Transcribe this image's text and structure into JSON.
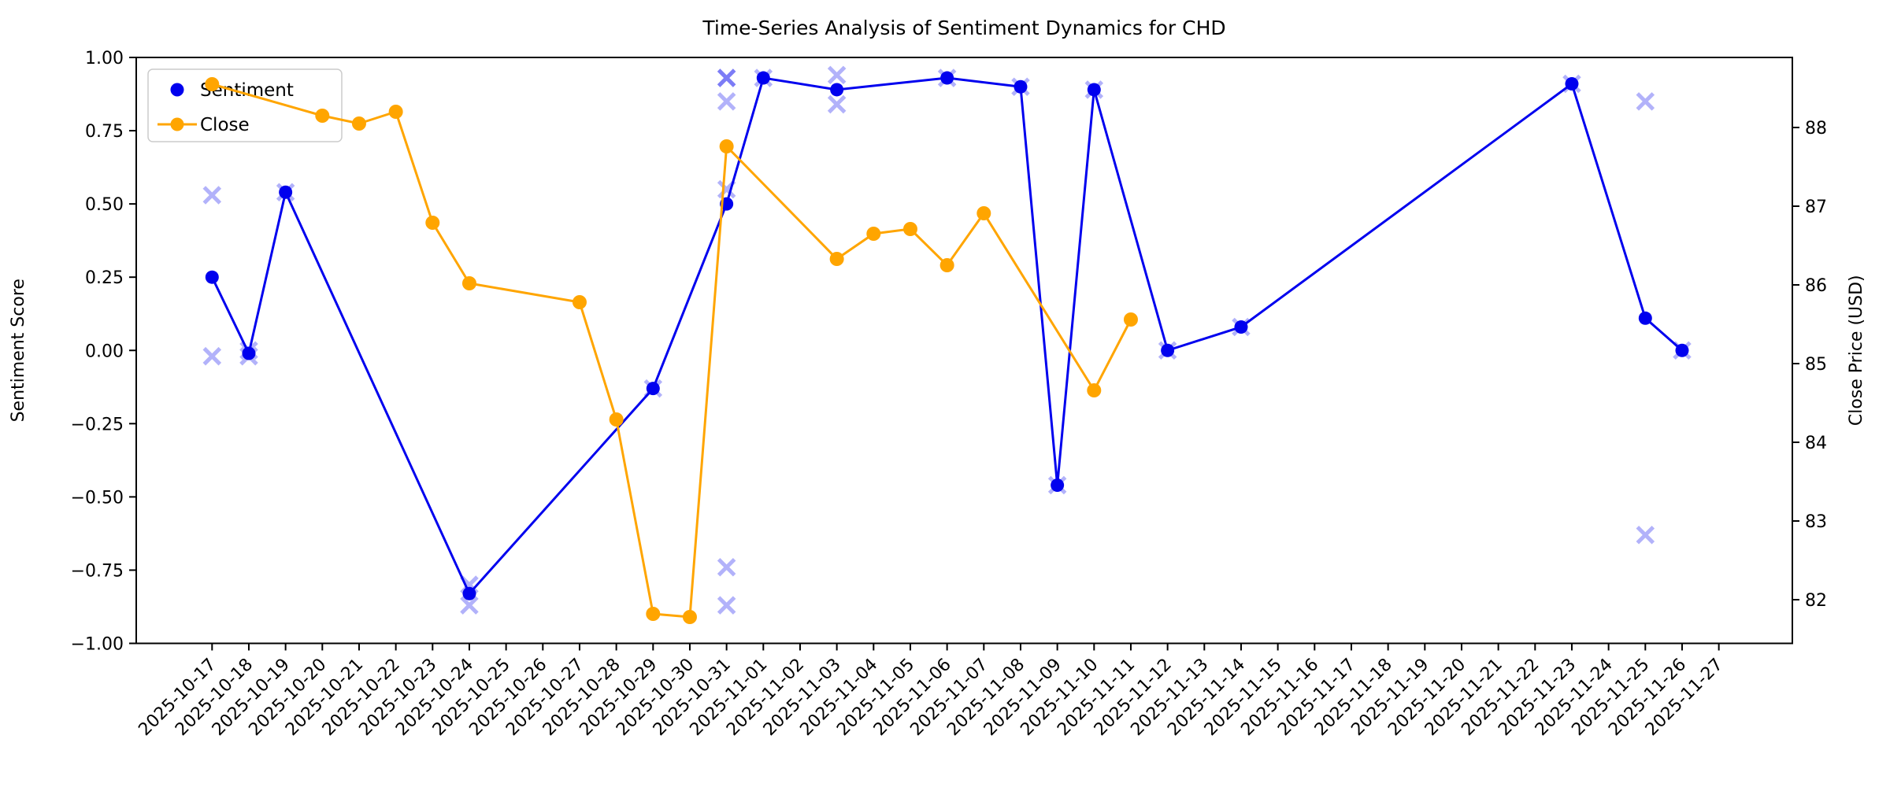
{
  "chart_data": {
    "type": "line",
    "title": "Time-Series Analysis of Sentiment Dynamics for CHD",
    "left_axis": {
      "label": "Sentiment Score",
      "lim": [
        -1.0,
        1.0
      ],
      "tick_values": [
        1.0,
        0.75,
        0.5,
        0.25,
        0.0,
        -0.25,
        -0.5,
        -0.75,
        -1.0
      ],
      "tick_labels": [
        "1.00",
        "0.75",
        "0.50",
        "0.25",
        "0.00",
        "−0.25",
        "−0.50",
        "−0.75",
        "−1.00"
      ]
    },
    "right_axis": {
      "label": "Close Price (USD)",
      "lim": [
        81.45,
        88.89
      ],
      "tick_values": [
        88,
        87,
        86,
        85,
        84,
        83,
        82
      ],
      "tick_labels": [
        "88",
        "87",
        "86",
        "85",
        "84",
        "83",
        "82"
      ]
    },
    "x_axis": {
      "rotation": 45,
      "dates": [
        "2025-10-17",
        "2025-10-18",
        "2025-10-19",
        "2025-10-20",
        "2025-10-21",
        "2025-10-22",
        "2025-10-23",
        "2025-10-24",
        "2025-10-25",
        "2025-10-26",
        "2025-10-27",
        "2025-10-28",
        "2025-10-29",
        "2025-10-30",
        "2025-10-31",
        "2025-11-01",
        "2025-11-02",
        "2025-11-03",
        "2025-11-04",
        "2025-11-05",
        "2025-11-06",
        "2025-11-07",
        "2025-11-08",
        "2025-11-09",
        "2025-11-10",
        "2025-11-11",
        "2025-11-12",
        "2025-11-13",
        "2025-11-14",
        "2025-11-15",
        "2025-11-16",
        "2025-11-17",
        "2025-11-18",
        "2025-11-19",
        "2025-11-20",
        "2025-11-21",
        "2025-11-22",
        "2025-11-23",
        "2025-11-24",
        "2025-11-25",
        "2025-11-26",
        "2025-11-27"
      ]
    },
    "legend": [
      {
        "label": "Sentiment",
        "color": "#0000EE",
        "marker": "dot"
      },
      {
        "label": "Close",
        "color": "#FFA500",
        "marker": "line-dot"
      }
    ],
    "series": {
      "sentiment_line": {
        "name": "Sentiment",
        "color": "#0000EE",
        "points": [
          [
            "2025-10-17",
            0.25
          ],
          [
            "2025-10-18",
            -0.01
          ],
          [
            "2025-10-19",
            0.54
          ],
          [
            "2025-10-24",
            -0.83
          ],
          [
            "2025-10-29",
            -0.13
          ],
          [
            "2025-10-31",
            0.5
          ],
          [
            "2025-11-01",
            0.93
          ],
          [
            "2025-11-03",
            0.89
          ],
          [
            "2025-11-06",
            0.93
          ],
          [
            "2025-11-08",
            0.9
          ],
          [
            "2025-11-09",
            -0.46
          ],
          [
            "2025-11-10",
            0.89
          ],
          [
            "2025-11-12",
            0.0
          ],
          [
            "2025-11-14",
            0.08
          ],
          [
            "2025-11-23",
            0.91
          ],
          [
            "2025-11-25",
            0.11
          ],
          [
            "2025-11-26",
            0.0
          ]
        ]
      },
      "close_line": {
        "name": "Close",
        "color": "#FFA500",
        "points": [
          [
            "2025-10-17",
            88.55
          ],
          [
            "2025-10-20",
            88.15
          ],
          [
            "2025-10-21",
            88.05
          ],
          [
            "2025-10-22",
            88.2
          ],
          [
            "2025-10-23",
            86.79
          ],
          [
            "2025-10-24",
            86.02
          ],
          [
            "2025-10-27",
            85.78
          ],
          [
            "2025-10-28",
            84.29
          ],
          [
            "2025-10-29",
            81.82
          ],
          [
            "2025-10-30",
            81.78
          ],
          [
            "2025-10-31",
            87.76
          ],
          [
            "2025-11-03",
            86.33
          ],
          [
            "2025-11-04",
            86.65
          ],
          [
            "2025-11-05",
            86.71
          ],
          [
            "2025-11-06",
            86.25
          ],
          [
            "2025-11-07",
            86.91
          ],
          [
            "2025-11-10",
            84.66
          ],
          [
            "2025-11-11",
            85.56
          ]
        ]
      },
      "sentiment_scatter": {
        "name": "sentiment-news-scatter",
        "color": "#0000EE",
        "opacity": 0.3,
        "marker": "x",
        "points": [
          [
            "2025-10-17",
            0.53
          ],
          [
            "2025-10-17",
            -0.02
          ],
          [
            "2025-10-18",
            0.0
          ],
          [
            "2025-10-18",
            -0.02
          ],
          [
            "2025-10-19",
            0.54
          ],
          [
            "2025-10-24",
            -0.8
          ],
          [
            "2025-10-24",
            -0.87
          ],
          [
            "2025-10-29",
            -0.13
          ],
          [
            "2025-10-31",
            0.93
          ],
          [
            "2025-10-31",
            0.93
          ],
          [
            "2025-10-31",
            0.85
          ],
          [
            "2025-10-31",
            0.55
          ],
          [
            "2025-10-31",
            -0.74
          ],
          [
            "2025-10-31",
            -0.87
          ],
          [
            "2025-11-01",
            0.93
          ],
          [
            "2025-11-03",
            0.94
          ],
          [
            "2025-11-03",
            0.84
          ],
          [
            "2025-11-06",
            0.93
          ],
          [
            "2025-11-08",
            0.9
          ],
          [
            "2025-11-09",
            -0.46
          ],
          [
            "2025-11-10",
            0.89
          ],
          [
            "2025-11-12",
            0.0
          ],
          [
            "2025-11-14",
            0.08
          ],
          [
            "2025-11-23",
            0.91
          ],
          [
            "2025-11-25",
            0.85
          ],
          [
            "2025-11-25",
            -0.63
          ],
          [
            "2025-11-26",
            0.0
          ]
        ]
      }
    }
  }
}
